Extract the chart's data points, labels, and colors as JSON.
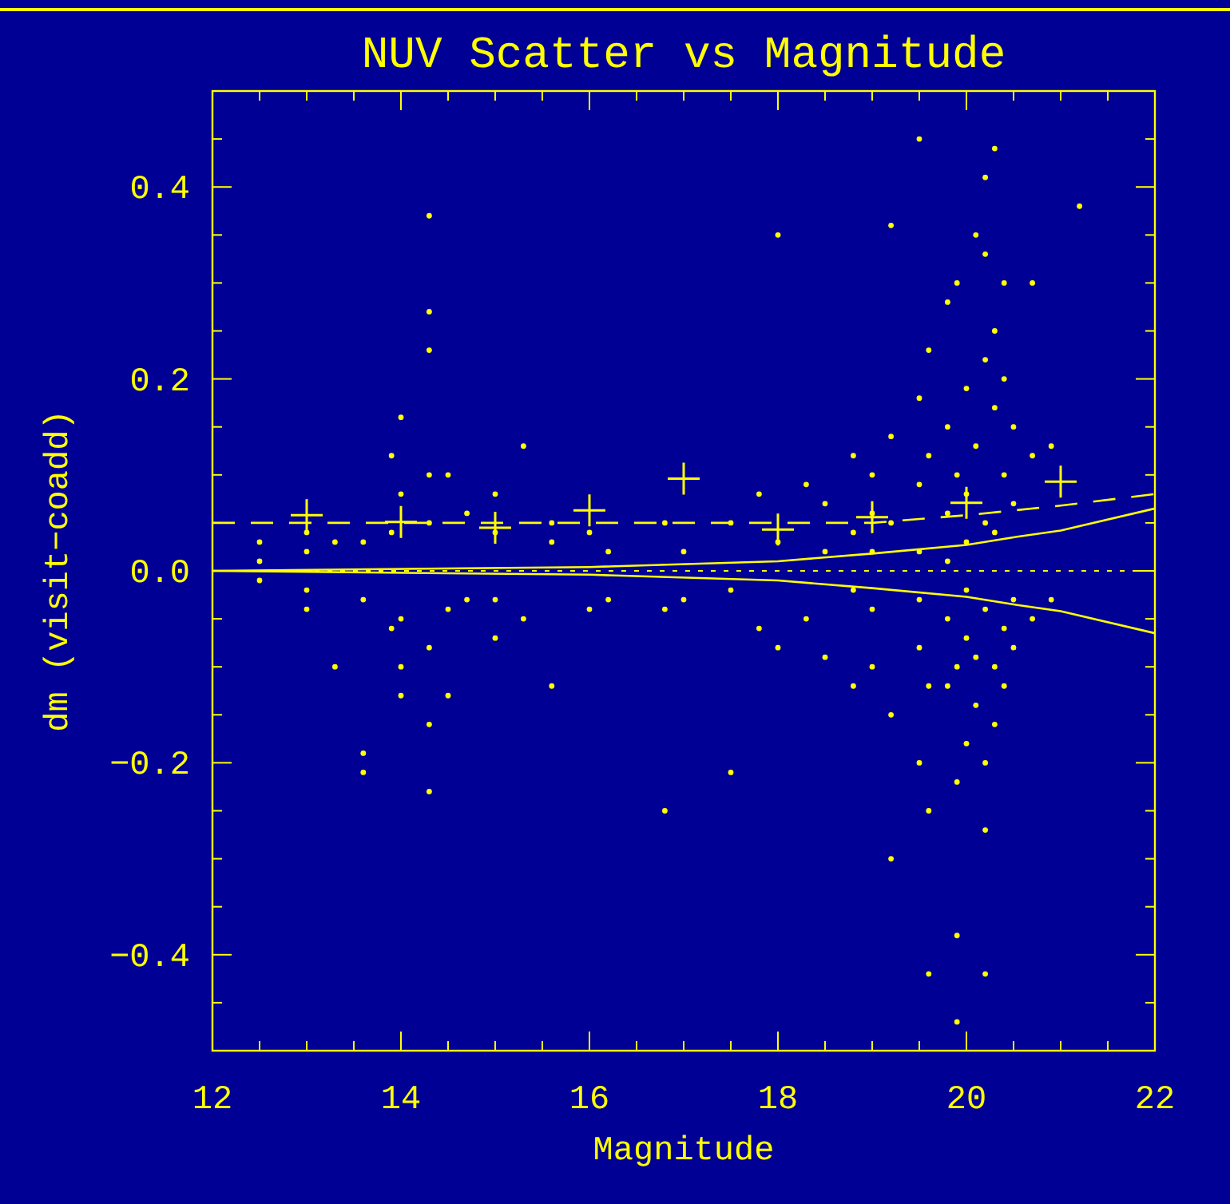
{
  "chart_data": {
    "type": "scatter",
    "title": "NUV Scatter vs Magnitude",
    "xlabel": "Magnitude",
    "ylabel": "dm (visit−coadd)",
    "xlim": [
      12,
      22
    ],
    "ylim": [
      -0.5,
      0.5
    ],
    "xticks": [
      12,
      {
        "value": 12.5,
        "label": null
      },
      {
        "value": 13,
        "label": null
      },
      {
        "value": 13.5,
        "label": null
      },
      14,
      {
        "value": 14.5,
        "label": null
      },
      {
        "value": 15,
        "label": null
      },
      {
        "value": 15.5,
        "label": null
      },
      16,
      {
        "value": 16.5,
        "label": null
      },
      {
        "value": 17,
        "label": null
      },
      {
        "value": 17.5,
        "label": null
      },
      18,
      {
        "value": 18.5,
        "label": null
      },
      {
        "value": 19,
        "label": null
      },
      {
        "value": 19.5,
        "label": null
      },
      20,
      {
        "value": 20.5,
        "label": null
      },
      {
        "value": 21,
        "label": null
      },
      {
        "value": 21.5,
        "label": null
      },
      22
    ],
    "yticks": [
      {
        "value": -0.4,
        "label": "−0.4"
      },
      {
        "value": -0.2,
        "label": "−0.2"
      },
      {
        "value": 0,
        "label": "0.0"
      },
      {
        "value": 0.2,
        "label": "0.2"
      },
      {
        "value": 0.4,
        "label": "0.4"
      },
      {
        "value": -0.45,
        "label": null
      },
      {
        "value": -0.35,
        "label": null
      },
      {
        "value": -0.3,
        "label": null
      },
      {
        "value": -0.25,
        "label": null
      },
      {
        "value": -0.15,
        "label": null
      },
      {
        "value": -0.1,
        "label": null
      },
      {
        "value": -0.05,
        "label": null
      },
      {
        "value": 0.05,
        "label": null
      },
      {
        "value": 0.1,
        "label": null
      },
      {
        "value": 0.15,
        "label": null
      },
      {
        "value": 0.25,
        "label": null
      },
      {
        "value": 0.3,
        "label": null
      },
      {
        "value": 0.35,
        "label": null
      },
      {
        "value": 0.45,
        "label": null
      }
    ],
    "ref_lines": [
      {
        "axis": "y",
        "value": 0,
        "color": "#ffff00",
        "line_style": "dotted"
      }
    ],
    "series": [
      {
        "marker": "circle",
        "color": "#ffff00",
        "x": [
          12.5,
          12.5,
          12.5,
          13,
          13,
          13,
          13,
          13.3,
          13.3,
          13.6,
          13.6,
          13.6,
          13.6,
          13.9,
          13.9,
          13.9,
          14,
          14,
          14,
          14,
          14,
          14.3,
          14.3,
          14.3,
          14.3,
          14.3,
          14.3,
          14.3,
          14.3,
          14.5,
          14.5,
          14.5,
          14.7,
          14.7,
          15,
          15,
          15,
          15,
          15.3,
          15.3,
          15.6,
          15.6,
          15.6,
          16,
          16,
          16.2,
          16.2,
          16.8,
          16.8,
          16.8,
          17,
          17,
          17.5,
          17.5,
          17.5,
          17.8,
          17.8,
          18,
          18,
          18,
          18.3,
          18.3,
          18.5,
          18.5,
          18.5,
          18.8,
          18.8,
          18.8,
          18.8,
          19,
          19,
          19,
          19,
          19,
          19.2,
          19.2,
          19.2,
          19.2,
          19.2,
          19.5,
          19.5,
          19.5,
          19.5,
          19.5,
          19.5,
          19.5,
          19.6,
          19.6,
          19.6,
          19.6,
          19.6,
          19.8,
          19.8,
          19.8,
          19.8,
          19.8,
          19.8,
          19.9,
          19.9,
          19.9,
          19.9,
          19.9,
          19.9,
          20,
          20,
          20,
          20,
          20,
          20,
          20.1,
          20.1,
          20.1,
          20.1,
          20.2,
          20.2,
          20.2,
          20.2,
          20.2,
          20.2,
          20.2,
          20.2,
          20.3,
          20.3,
          20.3,
          20.3,
          20.3,
          20.3,
          20.4,
          20.4,
          20.4,
          20.4,
          20.4,
          20.5,
          20.5,
          20.5,
          20.5,
          20.7,
          20.7,
          20.7,
          20.9,
          20.9,
          21.2
        ],
        "values": [
          0.01,
          -0.01,
          0.03,
          0.02,
          -0.02,
          -0.04,
          0.04,
          -0.1,
          0.03,
          -0.19,
          -0.21,
          0.03,
          -0.03,
          0.12,
          -0.06,
          0.04,
          0.16,
          -0.1,
          -0.13,
          0.08,
          -0.05,
          0.37,
          0.27,
          0.23,
          -0.16,
          -0.23,
          0.1,
          -0.08,
          0.05,
          0.1,
          -0.13,
          -0.04,
          0.06,
          -0.03,
          0.08,
          -0.07,
          0.04,
          -0.03,
          0.13,
          -0.05,
          0.05,
          -0.12,
          0.03,
          0.04,
          -0.04,
          0.02,
          -0.03,
          0.05,
          -0.25,
          -0.04,
          0.02,
          -0.03,
          -0.21,
          0.05,
          -0.02,
          0.08,
          -0.06,
          0.35,
          0.03,
          -0.08,
          0.09,
          -0.05,
          0.07,
          -0.09,
          0.02,
          0.12,
          -0.12,
          0.04,
          -0.02,
          0.1,
          -0.1,
          0.06,
          -0.04,
          0.02,
          0.36,
          -0.3,
          0.14,
          -0.15,
          0.05,
          0.45,
          0.18,
          -0.2,
          0.09,
          -0.08,
          0.02,
          -0.03,
          -0.42,
          0.23,
          -0.25,
          0.12,
          -0.12,
          0.28,
          -0.12,
          0.15,
          0.06,
          -0.05,
          0.01,
          -0.47,
          -0.38,
          0.3,
          -0.22,
          0.1,
          -0.1,
          0.19,
          -0.18,
          0.08,
          -0.07,
          0.03,
          -0.02,
          0.35,
          -0.14,
          0.13,
          -0.09,
          0.41,
          0.33,
          -0.42,
          -0.27,
          0.22,
          -0.2,
          0.05,
          -0.04,
          0.44,
          0.25,
          -0.16,
          0.17,
          -0.1,
          0.04,
          0.3,
          0.2,
          -0.12,
          0.1,
          -0.06,
          0.15,
          -0.08,
          0.07,
          -0.03,
          0.3,
          0.12,
          -0.05,
          0.13,
          -0.03,
          0.38
        ]
      },
      {
        "marker": "cross",
        "color": "#ffff00",
        "x": [
          13,
          14,
          15,
          16,
          17,
          18,
          19,
          20,
          21
        ],
        "values": [
          0.058,
          0.051,
          0.045,
          0.063,
          0.096,
          0.043,
          0.056,
          0.071,
          0.093
        ]
      },
      {
        "type": "line",
        "line_style": "dashed",
        "color": "#ffff00",
        "x": [
          12,
          19,
          20,
          21,
          22
        ],
        "values": [
          0.05,
          0.05,
          0.058,
          0.068,
          0.08
        ]
      },
      {
        "type": "line",
        "line_style": "solid",
        "color": "#ffff00",
        "x": [
          12,
          16,
          18,
          19,
          20,
          20.5,
          21,
          22
        ],
        "values": [
          0,
          0.004,
          0.01,
          0.018,
          0.027,
          0.035,
          0.042,
          0.065
        ]
      },
      {
        "type": "line",
        "line_style": "solid",
        "color": "#ffff00",
        "x": [
          12,
          16,
          18,
          19,
          20,
          20.5,
          21,
          22
        ],
        "values": [
          0,
          -0.004,
          -0.01,
          -0.018,
          -0.027,
          -0.035,
          -0.042,
          -0.065
        ]
      }
    ]
  }
}
